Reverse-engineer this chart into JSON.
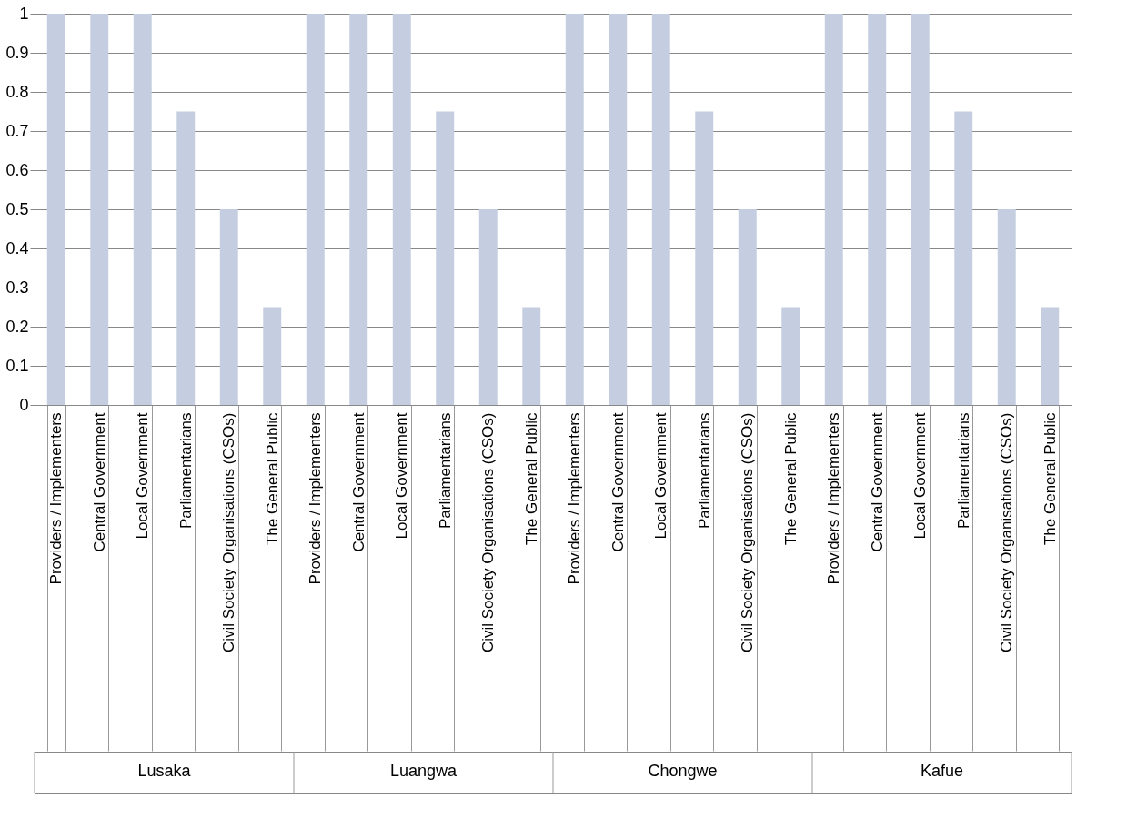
{
  "chart_data": {
    "type": "bar",
    "categories": [
      "Providers / Implementers",
      "Central Government",
      "Local Government",
      "Parliamentarians",
      "Civil Society Organisations (CSOs)",
      "The General  Public",
      "Providers / Implementers",
      "Central Government",
      "Local Government",
      "Parliamentarians",
      "Civil Society Organisations (CSOs)",
      "The General  Public",
      "Providers / Implementers",
      "Central Government",
      "Local Government",
      "Parliamentarians",
      "Civil Society Organisations (CSOs)",
      "The General  Public",
      "Providers / Implementers",
      "Central Government",
      "Local Government",
      "Parliamentarians",
      "Civil Society Organisations (CSOs)",
      "The General  Public"
    ],
    "values": [
      1,
      1,
      1,
      0.75,
      0.5,
      0.25,
      1,
      1,
      1,
      0.75,
      0.5,
      0.25,
      1,
      1,
      1,
      0.75,
      0.5,
      0.25,
      1,
      1,
      1,
      0.75,
      0.5,
      0.25
    ],
    "color": "#c4cee0",
    "ylim": [
      0,
      1
    ],
    "yticks": [
      0,
      0.1,
      0.2,
      0.3,
      0.4,
      0.5,
      0.6,
      0.7,
      0.8,
      0.9,
      1
    ],
    "grid": "y",
    "annotations": [
      "Lusaka",
      "Luangwa",
      "Chongwe",
      "Kafue"
    ]
  }
}
